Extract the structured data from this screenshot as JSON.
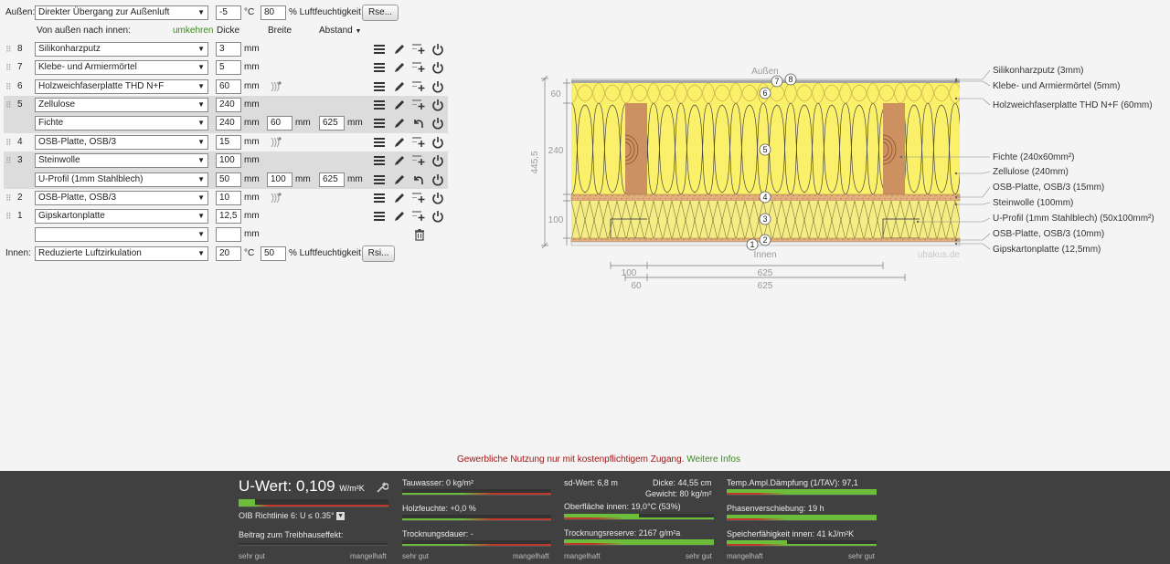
{
  "outside": {
    "label": "Außen:",
    "transition": "Direkter Übergang zur Außenluft",
    "temp": "-5",
    "temp_unit": "°C",
    "humidity": "80",
    "humidity_label": "% Luftfeuchtigkeit",
    "button": "Rse..."
  },
  "header": {
    "direction": "Von außen nach innen:",
    "reverse": "umkehren",
    "col_thickness": "Dicke",
    "col_width": "Breite",
    "col_spacing": "Abstand"
  },
  "layers": [
    {
      "num": "8",
      "material": "Silikonharzputz",
      "thickness": "3",
      "unit": "mm"
    },
    {
      "num": "7",
      "material": "Klebe- und Armiermörtel",
      "thickness": "5",
      "unit": "mm"
    },
    {
      "num": "6",
      "material": "Holzweichfaserplatte THD N+F",
      "thickness": "60",
      "unit": "mm"
    },
    {
      "num": "5",
      "material": "Zellulose",
      "thickness": "240",
      "unit": "mm",
      "sub": {
        "material": "Fichte",
        "thickness": "240",
        "width": "60",
        "spacing": "625",
        "unit": "mm"
      }
    },
    {
      "num": "4",
      "material": "OSB-Platte, OSB/3",
      "thickness": "15",
      "unit": "mm"
    },
    {
      "num": "3",
      "material": "Steinwolle",
      "thickness": "100",
      "unit": "mm",
      "sub": {
        "material": "U-Profil (1mm Stahlblech)",
        "thickness": "50",
        "width": "100",
        "spacing": "625",
        "unit": "mm"
      }
    },
    {
      "num": "2",
      "material": "OSB-Platte, OSB/3",
      "thickness": "10",
      "unit": "mm"
    },
    {
      "num": "1",
      "material": "Gipskartonplatte",
      "thickness": "12,5",
      "unit": "mm"
    }
  ],
  "empty_row": {
    "material": "",
    "thickness": "",
    "unit": "mm"
  },
  "inside": {
    "label": "Innen:",
    "transition": "Reduzierte Luftzirkulation",
    "temp": "20",
    "temp_unit": "°C",
    "humidity": "50",
    "humidity_label": "% Luftfeuchtigkeit",
    "button": "Rsi..."
  },
  "drawing": {
    "outside_label": "Außen",
    "inside_label": "Innen",
    "watermark": "ubakus.de",
    "dim_total": "445,5",
    "dim_left": [
      "60",
      "240",
      "100"
    ],
    "dim_bottom_top": [
      "100",
      "625"
    ],
    "dim_bottom_bottom": [
      "60",
      "625"
    ],
    "markers": [
      "8",
      "7",
      "6",
      "5",
      "4",
      "3",
      "2",
      "1"
    ],
    "legend": [
      "Silikonharzputz (3mm)",
      "Klebe- und Armiermörtel (5mm)",
      "Holzweichfaserplatte THD N+F (60mm)",
      "Fichte (240x60mm²)",
      "Zellulose (240mm)",
      "OSB-Platte, OSB/3 (15mm)",
      "Steinwolle (100mm)",
      "U-Profil (1mm Stahlblech) (50x100mm²)",
      "OSB-Platte, OSB/3 (10mm)",
      "Gipskartonplatte (12,5mm)"
    ]
  },
  "notice": {
    "text": "Gewerbliche Nutzung nur mit kostenpflichtigem Zugang.",
    "link": "Weitere Infos"
  },
  "footer": {
    "uvalue_label": "U-Wert:",
    "uvalue": "0,109",
    "uvalue_unit": "W/m²K",
    "oib": "OIB Richtlinie 6: U ≤ 0.35°",
    "greenhouse": "Beitrag zum Treibhauseffekt:",
    "good": "sehr gut",
    "bad": "mangelhaft",
    "condensate": "Tauwasser: 0 kg/m²",
    "wood_moisture": "Holzfeuchte: +0,0 %",
    "drying_time": "Trocknungsdauer: -",
    "sd_value": "sd-Wert: 6,8 m",
    "thickness": "Dicke: 44,55 cm",
    "weight": "Gewicht: 80 kg/m²",
    "surface_inside": "Oberfläche innen: 19,0°C (53%)",
    "drying_reserve": "Trocknungsreserve: 2167 g/m²a",
    "damping": "Temp.Ampl.Dämpfung (1/TAV): 97,1",
    "phase_shift": "Phasenverschiebung: 19 h",
    "storage": "Speicherfähigkeit innen: 41 kJ/m²K",
    "fills": {
      "uvalue": 0.11,
      "condensate": 0.0,
      "wood_moisture": 0.0,
      "drying": 0.0,
      "surface": 0.5,
      "reserve": 1.0,
      "damping": 1.0,
      "phase": 1.0,
      "storage": 0.4
    }
  }
}
